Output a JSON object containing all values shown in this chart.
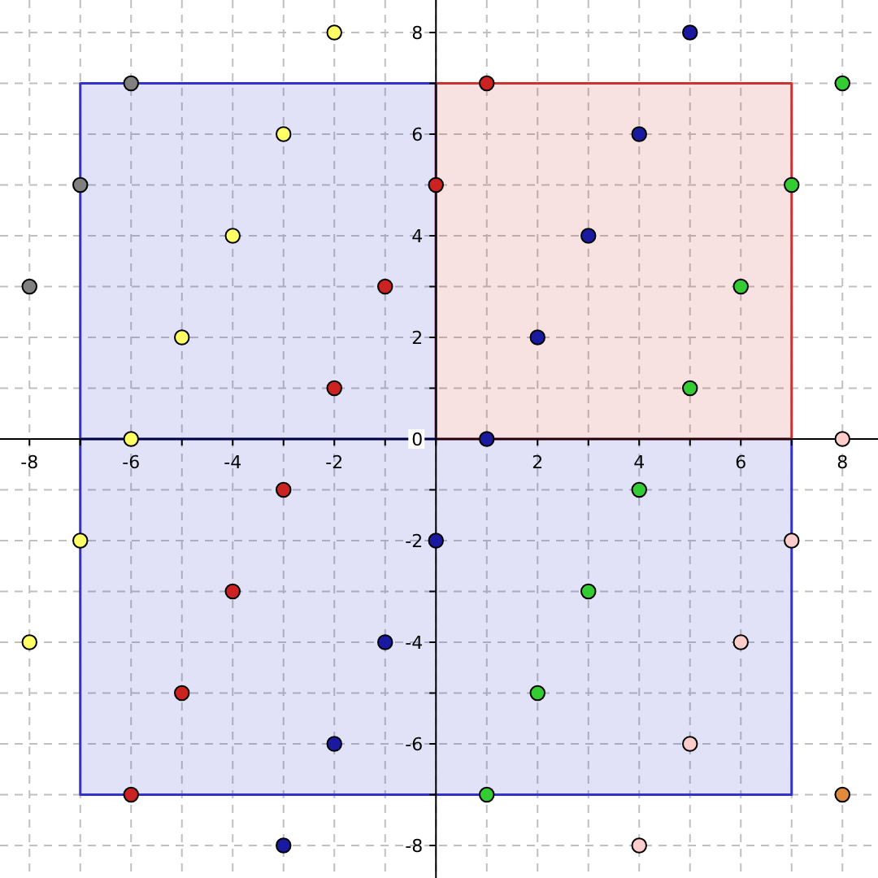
{
  "chart_data": {
    "type": "scatter",
    "xlim": [
      -8.58,
      8.7
    ],
    "ylim": [
      -8.64,
      8.64
    ],
    "xticks": [
      {
        "value": -8,
        "label": "-8"
      },
      {
        "value": -7,
        "label": null
      },
      {
        "value": -6,
        "label": "-6"
      },
      {
        "value": -5,
        "label": null
      },
      {
        "value": -4,
        "label": "-4"
      },
      {
        "value": -3,
        "label": null
      },
      {
        "value": -2,
        "label": "-2"
      },
      {
        "value": -1,
        "label": null
      },
      {
        "value": 0,
        "label": null
      },
      {
        "value": 1,
        "label": null
      },
      {
        "value": 2,
        "label": "2"
      },
      {
        "value": 3,
        "label": null
      },
      {
        "value": 4,
        "label": "4"
      },
      {
        "value": 5,
        "label": null
      },
      {
        "value": 6,
        "label": "6"
      },
      {
        "value": 7,
        "label": null
      },
      {
        "value": 8,
        "label": "8"
      }
    ],
    "yticks": [
      {
        "value": -8,
        "label": "-8"
      },
      {
        "value": -7,
        "label": null
      },
      {
        "value": -6,
        "label": "-6"
      },
      {
        "value": -5,
        "label": null
      },
      {
        "value": -4,
        "label": "-4"
      },
      {
        "value": -3,
        "label": null
      },
      {
        "value": -2,
        "label": "-2"
      },
      {
        "value": -1,
        "label": null
      },
      0,
      {
        "value": 1,
        "label": null
      },
      {
        "value": 2,
        "label": "2"
      },
      {
        "value": 3,
        "label": null
      },
      {
        "value": 4,
        "label": "4"
      },
      {
        "value": 5,
        "label": null
      },
      {
        "value": 6,
        "label": "6"
      },
      {
        "value": 7,
        "label": null
      },
      {
        "value": 8,
        "label": "8"
      }
    ],
    "grid": true,
    "marker": "circle",
    "series": [
      {
        "type": "area",
        "marker": "none",
        "color": "#3333cc",
        "x": [
          -7,
          7
        ],
        "values": [
          -7,
          -7
        ]
      },
      {
        "type": "area",
        "marker": "none",
        "color": "#3333cc",
        "x": [
          -7,
          0
        ],
        "values": [
          7,
          7
        ]
      },
      {
        "type": "area",
        "marker": "none",
        "color": "#cc3333",
        "x": [
          0,
          7
        ],
        "values": [
          7,
          7
        ]
      },
      {
        "color": "#808080",
        "x": [
          -6,
          -7,
          -8
        ],
        "values": [
          7,
          5,
          3
        ]
      },
      {
        "color": "#ffff66",
        "x": [
          -2,
          -3,
          -4,
          -5,
          -6,
          -7,
          -8
        ],
        "values": [
          8,
          6,
          4,
          2,
          0,
          -2,
          -4
        ]
      },
      {
        "color": "#cc2222",
        "x": [
          1,
          0,
          -1,
          -2,
          -3,
          -4,
          -5,
          -6
        ],
        "values": [
          7,
          5,
          3,
          1,
          -1,
          -3,
          -5,
          -7
        ]
      },
      {
        "color": "#1a1aa0",
        "x": [
          1,
          2,
          3,
          4,
          5,
          0,
          -1,
          -2,
          -3
        ],
        "values": [
          0,
          2,
          4,
          6,
          8,
          -2,
          -4,
          -6,
          -8
        ]
      },
      {
        "color": "#33cc33",
        "x": [
          8,
          7,
          6,
          5,
          4,
          3,
          2,
          1
        ],
        "values": [
          7,
          5,
          3,
          1,
          -1,
          -3,
          -5,
          -7
        ]
      },
      {
        "color": "#ffcccc",
        "x": [
          8,
          7,
          6,
          5,
          4
        ],
        "values": [
          0,
          -2,
          -4,
          -6,
          -8
        ]
      },
      {
        "color": "#e08a3c",
        "x": [
          8
        ],
        "values": [
          -7
        ]
      }
    ]
  }
}
